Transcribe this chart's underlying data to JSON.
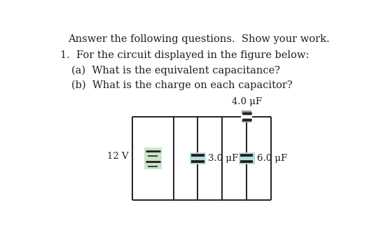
{
  "title_text": "Answer the following questions.  Show your work.",
  "question_text": "1.  For the circuit displayed in the figure below:",
  "sub_a": "(a)  What is the equivalent capacitance?",
  "sub_b": "(b)  What is the charge on each capacitor?",
  "bg_color": "#ffffff",
  "text_color": "#231f20",
  "circuit_line_color": "#231f20",
  "bat_fill": "#c8e6c9",
  "cap_fill": "#b2dfdb",
  "cap4_fill": "#90a898",
  "voltage_label": "12 V",
  "cap1_label": "4.0 μF",
  "cap2_label": "3.0 μF",
  "cap3_label": "6.0 μF",
  "title_fontsize": 10.5,
  "body_fontsize": 10.5,
  "circuit_lw": 1.4,
  "CL": 1.55,
  "CR": 4.1,
  "CT": 1.95,
  "CB": 0.4,
  "D1": 2.3,
  "D2": 3.2
}
